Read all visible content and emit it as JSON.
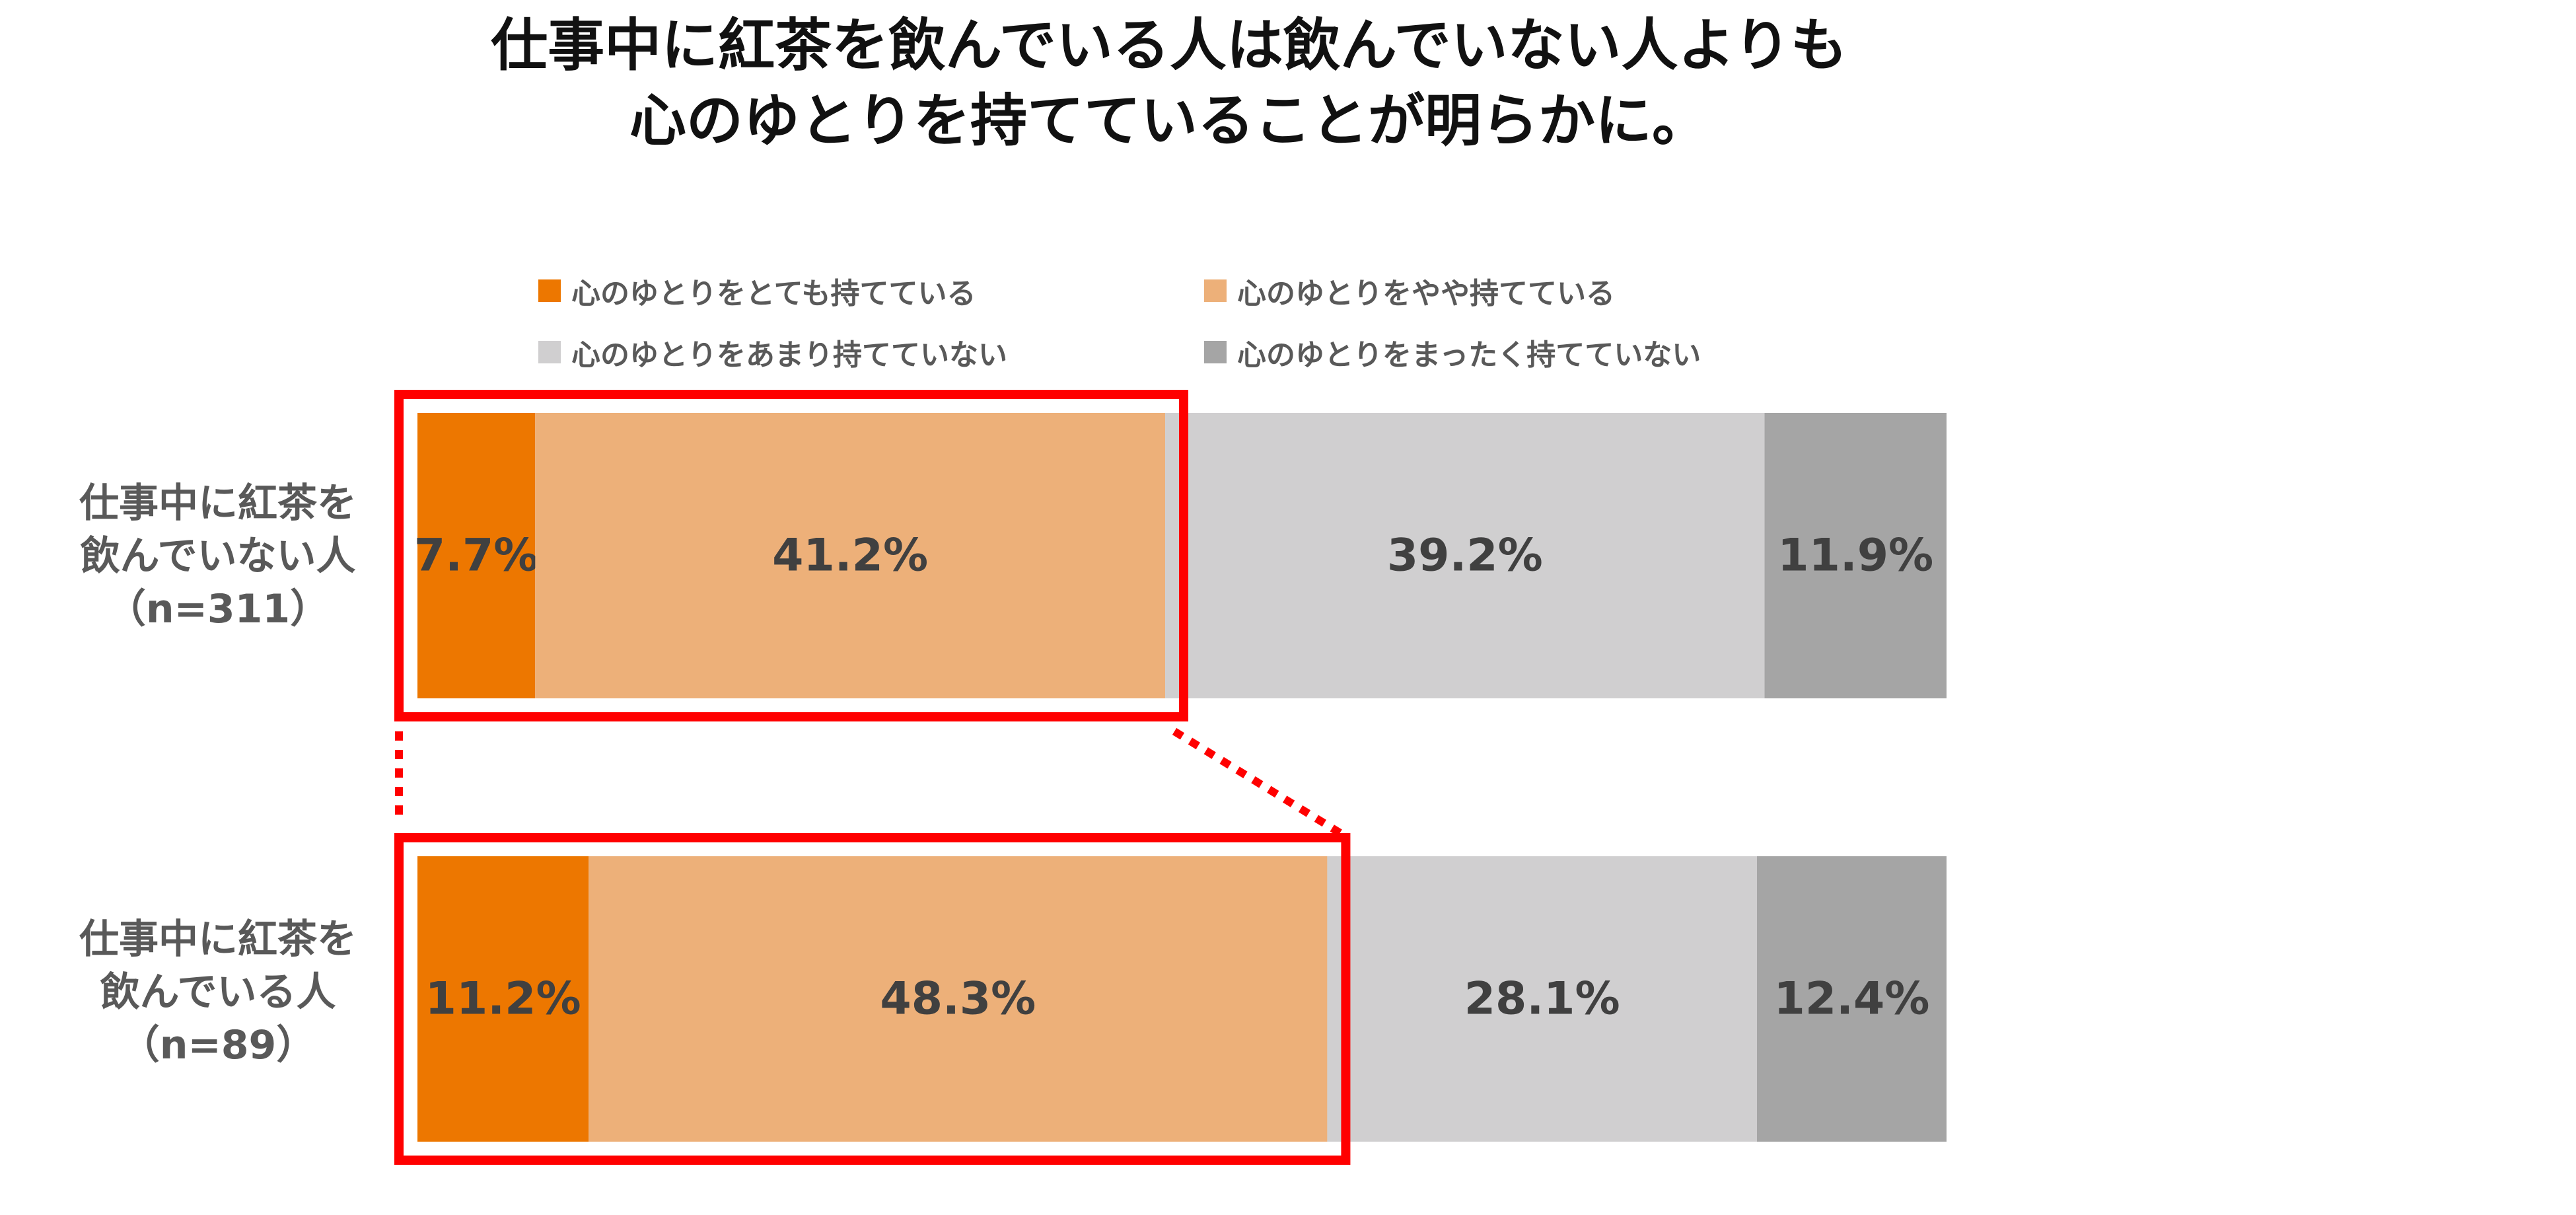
{
  "title": {
    "line1": "仕事中に紅茶を飲んでいる人は飲んでいない人よりも",
    "line2": "心のゆとりを持てていることが明らかに。"
  },
  "legend": [
    {
      "label": "心のゆとりをとても持てている",
      "color": "#ED7700"
    },
    {
      "label": "心のゆとりをやや持てている",
      "color": "#EDB079"
    },
    {
      "label": "心のゆとりをあまり持てていない",
      "color": "#D0CFD0"
    },
    {
      "label": "心のゆとりをまったく持てていない",
      "color": "#A5A5A5"
    }
  ],
  "chart_data": {
    "type": "bar",
    "orientation": "horizontal",
    "stacked": true,
    "percent_scale": true,
    "categories": [
      [
        "仕事中に紅茶を",
        "飲んでいない人",
        "（n=311）"
      ],
      [
        "仕事中に紅茶を",
        "飲んでいる人",
        "（n=89）"
      ]
    ],
    "series": [
      {
        "name": "心のゆとりをとても持てている",
        "color": "#ED7700",
        "values": [
          7.7,
          11.2
        ],
        "labels": [
          "7.7%",
          "11.2%"
        ]
      },
      {
        "name": "心のゆとりをやや持てている",
        "color": "#EDB079",
        "values": [
          41.2,
          48.3
        ],
        "labels": [
          "41.2%",
          "48.3%"
        ]
      },
      {
        "name": "心のゆとりをあまり持てていない",
        "color": "#D0CFD0",
        "values": [
          39.2,
          28.1
        ],
        "labels": [
          "39.2%",
          "28.1%"
        ]
      },
      {
        "name": "心のゆとりをまったく持てていない",
        "color": "#A5A5A5",
        "values": [
          11.9,
          12.4
        ],
        "labels": [
          "11.9%",
          "12.4%"
        ]
      }
    ],
    "highlight": {
      "series": [
        "心のゆとりをとても持てている",
        "心のゆとりをやや持てている"
      ],
      "color": "#FF0000",
      "style": "boxes joined by dotted lines"
    },
    "grid": false,
    "legend_position": "top"
  }
}
